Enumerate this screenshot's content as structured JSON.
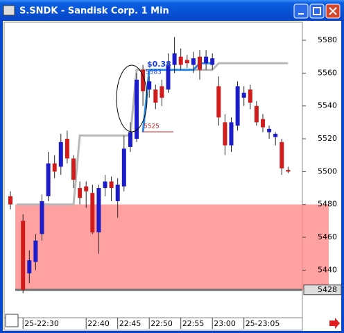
{
  "chart_data": {
    "type": "candlestick",
    "title": "S.SNDK - Sandisk Corp. 1 Min",
    "categories": [
      null,
      null,
      "25-22:30",
      null,
      null,
      null,
      null,
      null,
      null,
      null,
      null,
      null,
      "22:40",
      null,
      null,
      null,
      null,
      "22:45",
      null,
      null,
      null,
      null,
      "22:50",
      null,
      null,
      null,
      null,
      "22:55",
      null,
      null,
      null,
      null,
      "23:00",
      null,
      null,
      null,
      null,
      "25-23:05",
      null,
      null,
      null,
      null,
      null,
      null,
      null
    ],
    "open": [
      5485,
      null,
      5470,
      5438,
      5445,
      5462,
      5485,
      5505,
      5503,
      5520,
      5508,
      5490,
      5491,
      5487,
      5463,
      5490,
      5494,
      5482,
      5491,
      5515,
      5520,
      5562,
      5550,
      5550,
      5552,
      5550,
      5565,
      5570,
      5568,
      5565,
      5570,
      5566,
      5565,
      5552,
      5530,
      5516,
      5528,
      5545,
      5550,
      5540,
      5532,
      5524,
      5521,
      5518,
      5501
    ],
    "high": [
      5488,
      null,
      5474,
      5452,
      5462,
      5486,
      5512,
      5510,
      5523,
      5525,
      5510,
      5494,
      5494,
      5492,
      5492,
      5498,
      5497,
      5496,
      5522,
      5530,
      5560,
      5565,
      5558,
      5553,
      5556,
      5572,
      5582,
      5575,
      5571,
      5573,
      5574,
      5574,
      5572,
      5558,
      5535,
      5533,
      5555,
      5552,
      5553,
      5543,
      5535,
      5528,
      5524,
      5520,
      5503
    ],
    "low": [
      5477,
      null,
      5426,
      5432,
      5440,
      5458,
      5482,
      5496,
      5498,
      5505,
      5490,
      5480,
      5478,
      5462,
      5450,
      5485,
      5482,
      5472,
      5488,
      5512,
      5518,
      5540,
      5545,
      5538,
      5540,
      5548,
      5560,
      5562,
      5563,
      5560,
      5556,
      5562,
      5562,
      5528,
      5510,
      5512,
      5525,
      5540,
      5538,
      5528,
      5524,
      5520,
      5516,
      5498,
      5499
    ],
    "close": [
      5480,
      null,
      5428,
      5446,
      5458,
      5482,
      5505,
      5500,
      5518,
      5508,
      5495,
      5484,
      5488,
      5463,
      5490,
      5494,
      5490,
      5492,
      5514,
      5524,
      5556,
      5549,
      5555,
      5542,
      5545,
      5565,
      5572,
      5565,
      5566,
      5569,
      5562,
      5570,
      5569,
      5533,
      5516,
      5530,
      5552,
      5548,
      5542,
      5530,
      5527,
      5526,
      5523,
      5502,
      5500
    ],
    "up_color": "#1c1cc8",
    "down_color": "#d01c1c",
    "lines": [
      {
        "color": "#b8b8b8",
        "values": [
          null,
          5480,
          5480,
          5480,
          5480,
          5480,
          5480,
          5480,
          5480,
          5480,
          5480,
          5522,
          5522,
          5522,
          5522,
          5522,
          5522,
          5522,
          5522,
          5522,
          5562,
          5562,
          5562,
          5562,
          5562,
          5562,
          5562,
          5562,
          5562,
          5562,
          5562,
          5562,
          5562,
          5566,
          5566,
          5566,
          5566,
          5566,
          5566,
          5566,
          5566,
          5566,
          5566,
          5566,
          5566
        ]
      },
      {
        "color": "#2a8ce8",
        "values": [
          null,
          null,
          null,
          null,
          null,
          null,
          null,
          null,
          null,
          null,
          null,
          null,
          null,
          null,
          null,
          null,
          null,
          null,
          null,
          null,
          null,
          5524,
          5562,
          5562,
          5562,
          5562,
          5562,
          5562,
          5562,
          5562,
          5566,
          5566,
          5566,
          null,
          null,
          null,
          null,
          null,
          null,
          null,
          null,
          null,
          null,
          null,
          null
        ]
      }
    ],
    "zone": [
      5428,
      5480
    ],
    "zone_color": "#ff8a8a",
    "level": 5428,
    "level_color": "#707070",
    "annotations": [
      {
        "text": "$0.38",
        "color": "#1a3fd0"
      },
      {
        "text": "5583",
        "color": "#1a3fd0"
      },
      {
        "text": "5525",
        "color": "#cc2222"
      }
    ],
    "ylim": [
      5411,
      5591
    ],
    "yticks": [
      5440,
      5460,
      5480,
      5500,
      5520,
      5540,
      5560,
      5580
    ]
  }
}
